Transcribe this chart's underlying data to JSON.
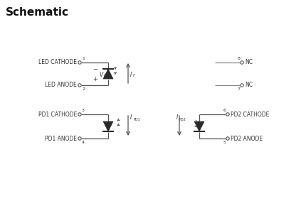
{
  "title": "Schematic",
  "title_fontsize": 11,
  "bg_color": "#ffffff",
  "line_color": "#555555",
  "text_color": "#333333",
  "fig_width": 4.3,
  "fig_height": 2.83,
  "led_cat_label": "LED CATHODE",
  "led_ano_label": "LED ANODE",
  "pd1_cat_label": "PD1 CATHODE",
  "pd1_ano_label": "PD1 ANODE",
  "pd2_cat_label": "PD2 CATHODE",
  "pd2_ano_label": "PD2 ANODE",
  "nc_label": "NC",
  "label_fontsize": 5.5,
  "pin_fontsize": 4.5,
  "symbol_fontsize": 5.5
}
